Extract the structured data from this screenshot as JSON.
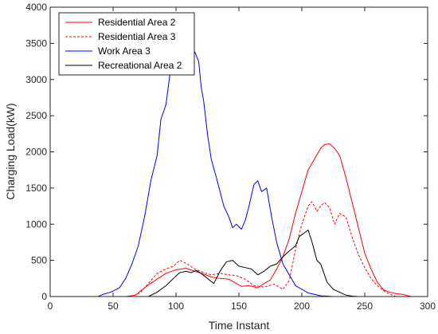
{
  "chart_data": {
    "type": "line",
    "title": "",
    "xlabel": "Time Instant",
    "ylabel": "Charging Load(kW)",
    "xlim": [
      0,
      300
    ],
    "ylim": [
      0,
      4000
    ],
    "xticks": [
      0,
      50,
      100,
      150,
      200,
      250,
      300
    ],
    "yticks": [
      0,
      500,
      1000,
      1500,
      2000,
      2500,
      3000,
      3500,
      4000
    ],
    "grid": false,
    "legend_position": "top-left",
    "series": [
      {
        "name": "Residential Area 2",
        "color": "#ff0000",
        "dash": "solid",
        "x": [
          0,
          60,
          68,
          72,
          78,
          85,
          92,
          100,
          108,
          115,
          122,
          128,
          135,
          142,
          148,
          152,
          158,
          165,
          170,
          175,
          180,
          185,
          190,
          195,
          200,
          205,
          210,
          215,
          218,
          222,
          226,
          230,
          235,
          240,
          245,
          250,
          255,
          260,
          265,
          270,
          275,
          280,
          287
        ],
        "y": [
          0,
          0,
          20,
          80,
          160,
          240,
          320,
          370,
          390,
          350,
          310,
          270,
          250,
          240,
          180,
          140,
          150,
          120,
          180,
          230,
          380,
          550,
          800,
          1150,
          1450,
          1750,
          1900,
          2050,
          2100,
          2110,
          2050,
          1950,
          1650,
          1300,
          950,
          600,
          380,
          200,
          90,
          60,
          40,
          30,
          0
        ]
      },
      {
        "name": "Residential Area 3",
        "color": "#ff0000",
        "dash": "dashed",
        "x": [
          0,
          65,
          72,
          78,
          85,
          92,
          98,
          103,
          108,
          115,
          122,
          128,
          135,
          142,
          148,
          155,
          162,
          170,
          178,
          185,
          190,
          195,
          200,
          205,
          208,
          212,
          215,
          218,
          222,
          226,
          230,
          235,
          240,
          245,
          250,
          255,
          260,
          265,
          270,
          275
        ],
        "y": [
          0,
          0,
          60,
          180,
          320,
          380,
          420,
          500,
          460,
          380,
          330,
          300,
          320,
          300,
          290,
          240,
          150,
          130,
          170,
          100,
          220,
          650,
          1000,
          1250,
          1310,
          1180,
          1250,
          1300,
          1230,
          1000,
          1150,
          1100,
          820,
          580,
          400,
          250,
          150,
          80,
          30,
          0
        ]
      },
      {
        "name": "Work Area 3",
        "color": "#0000ff",
        "dash": "solid",
        "x": [
          0,
          38,
          42,
          48,
          55,
          60,
          65,
          70,
          75,
          80,
          85,
          88,
          92,
          95,
          98,
          102,
          105,
          108,
          112,
          115,
          118,
          120,
          122,
          125,
          128,
          132,
          135,
          138,
          142,
          145,
          148,
          152,
          155,
          158,
          162,
          165,
          168,
          172,
          176,
          180,
          185,
          190,
          195,
          200,
          205,
          210,
          215,
          220,
          225
        ],
        "y": [
          0,
          0,
          30,
          60,
          120,
          250,
          450,
          700,
          1100,
          1600,
          1950,
          2450,
          2650,
          3050,
          3250,
          3500,
          3550,
          3450,
          3200,
          3380,
          3250,
          2900,
          2700,
          2250,
          1900,
          1650,
          1450,
          1250,
          1100,
          950,
          1000,
          930,
          1050,
          1250,
          1550,
          1600,
          1450,
          1500,
          1100,
          750,
          450,
          300,
          150,
          100,
          50,
          30,
          10,
          5,
          0
        ]
      },
      {
        "name": "Recreational Area 2",
        "color": "#000000",
        "dash": "solid",
        "x": [
          0,
          78,
          85,
          92,
          98,
          103,
          108,
          112,
          116,
          120,
          125,
          130,
          135,
          140,
          145,
          150,
          155,
          160,
          165,
          170,
          175,
          180,
          185,
          190,
          195,
          198,
          202,
          205,
          208,
          212,
          215,
          220,
          225,
          230,
          235,
          240,
          245
        ],
        "y": [
          0,
          0,
          60,
          150,
          250,
          330,
          350,
          330,
          360,
          320,
          250,
          180,
          350,
          480,
          500,
          420,
          400,
          380,
          300,
          350,
          420,
          450,
          550,
          630,
          700,
          830,
          880,
          920,
          760,
          500,
          450,
          200,
          100,
          60,
          20,
          5,
          0
        ]
      }
    ]
  }
}
